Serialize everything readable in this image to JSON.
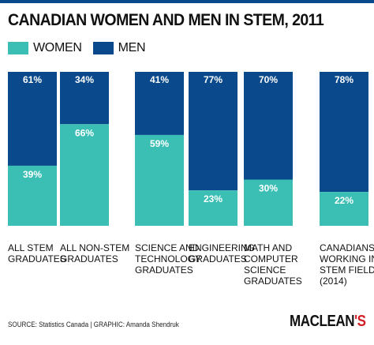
{
  "title": "CANADIAN WOMEN AND MEN IN STEM, 2011",
  "legend": {
    "women": "WOMEN",
    "men": "MEN"
  },
  "colors": {
    "women": "#3bbfb5",
    "men": "#0a4a8c",
    "top_rule": "#0a4a8c",
    "brand_accent": "#d21f26"
  },
  "chart_data": {
    "type": "bar",
    "stacked": true,
    "percent_stacked": true,
    "categories": [
      [
        "ALL STEM",
        "GRADUATES"
      ],
      [
        "ALL NON-STEM",
        "GRADUATES"
      ],
      [
        "SCIENCE AND",
        "TECHNOLOGY",
        "GRADUATES"
      ],
      [
        "ENGINEERING",
        "GRADUATES"
      ],
      [
        "MATH AND",
        "COMPUTER",
        "SCIENCE",
        "GRADUATES"
      ],
      [
        "CANADIANS",
        "WORKING IN",
        "STEM FIELDS",
        "(2014)"
      ]
    ],
    "series": [
      {
        "name": "WOMEN",
        "values": [
          39,
          66,
          59,
          23,
          30,
          22
        ],
        "labels": [
          "39%",
          "66%",
          "59%",
          "23%",
          "30%",
          "22%"
        ]
      },
      {
        "name": "MEN",
        "values": [
          61,
          34,
          41,
          77,
          70,
          78
        ],
        "labels": [
          "61%",
          "34%",
          "41%",
          "77%",
          "70%",
          "78%"
        ]
      }
    ],
    "ylim": [
      0,
      100
    ],
    "grid": false
  },
  "footer": {
    "source": "SOURCE: Statistics Canada  |  GRAPHIC: Amanda Shendruk",
    "brand_text": "MACLEAN",
    "brand_suffix": "'S"
  }
}
